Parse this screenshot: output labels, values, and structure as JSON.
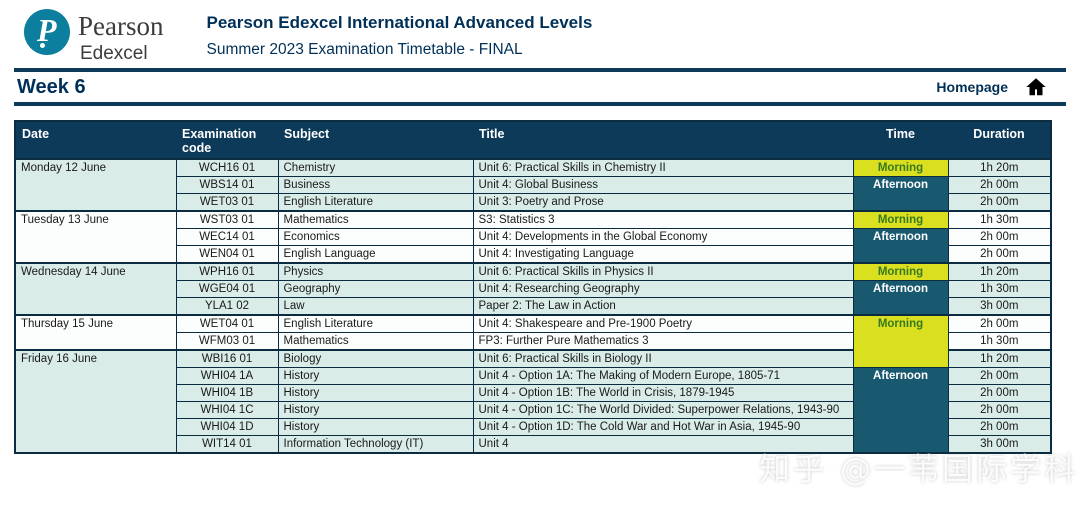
{
  "header": {
    "logo": {
      "monogram": "P",
      "brand": "Pearson",
      "sub": "Edexcel"
    },
    "title": "Pearson Edexcel International Advanced Levels",
    "subtitle": "Summer 2023 Examination Timetable - FINAL"
  },
  "weekbar": {
    "week": "Week 6",
    "homepage": "Homepage"
  },
  "colors": {
    "navy": "#0e3a5a",
    "text_navy": "#003057",
    "morning_bg": "#dadf1f",
    "morning_text": "#377a1d",
    "afternoon_bg": "#18596f",
    "row_mint": "#d9ece8",
    "row_white": "#fcfefd",
    "logo_teal": "#0d7f9e"
  },
  "table": {
    "columns": [
      {
        "label": "Date",
        "align": "left"
      },
      {
        "label": "Examination\ncode",
        "align": "left"
      },
      {
        "label": "Subject",
        "align": "left"
      },
      {
        "label": "Title",
        "align": "left"
      },
      {
        "label": "Time",
        "align": "center"
      },
      {
        "label": "Duration",
        "align": "center"
      }
    ],
    "rows": [
      {
        "shade": "mint",
        "group_start": true,
        "date": {
          "label": "Monday 12 June",
          "rowspan": 3
        },
        "code": "WCH16 01",
        "subject": "Chemistry",
        "title": "Unit 6: Practical Skills in Chemistry II",
        "time": {
          "label": "Morning",
          "kind": "morning",
          "rowspan": 1
        },
        "duration": "1h 20m"
      },
      {
        "shade": "mint",
        "code": "WBS14 01",
        "subject": "Business",
        "title": "Unit 4: Global Business",
        "time": {
          "label": "Afternoon",
          "kind": "afternoon",
          "rowspan": 2
        },
        "duration": "2h 00m"
      },
      {
        "shade": "mint",
        "code": "WET03 01",
        "subject": "English Literature",
        "title": "Unit 3: Poetry and Prose",
        "duration": "2h 00m"
      },
      {
        "shade": "white",
        "group_start": true,
        "date": {
          "label": "Tuesday 13 June",
          "rowspan": 3
        },
        "code": "WST03 01",
        "subject": "Mathematics",
        "title": "S3: Statistics 3",
        "time": {
          "label": "Morning",
          "kind": "morning",
          "rowspan": 1
        },
        "duration": "1h 30m"
      },
      {
        "shade": "white",
        "code": "WEC14 01",
        "subject": "Economics",
        "title": "Unit 4: Developments in the Global Economy",
        "time": {
          "label": "Afternoon",
          "kind": "afternoon",
          "rowspan": 2
        },
        "duration": "2h 00m"
      },
      {
        "shade": "white",
        "code": "WEN04 01",
        "subject": "English Language",
        "title": "Unit 4: Investigating Language",
        "duration": "2h 00m"
      },
      {
        "shade": "mint",
        "group_start": true,
        "date": {
          "label": "Wednesday 14 June",
          "rowspan": 3
        },
        "code": "WPH16 01",
        "subject": "Physics",
        "title": "Unit 6: Practical Skills in Physics II",
        "time": {
          "label": "Morning",
          "kind": "morning",
          "rowspan": 1
        },
        "duration": "1h 20m"
      },
      {
        "shade": "mint",
        "code": "WGE04 01",
        "subject": "Geography",
        "title": "Unit 4: Researching Geography",
        "time": {
          "label": "Afternoon",
          "kind": "afternoon",
          "rowspan": 2
        },
        "duration": "1h 30m"
      },
      {
        "shade": "mint",
        "code": "YLA1 02",
        "subject": "Law",
        "title": "Paper 2: The Law in Action",
        "duration": "3h 00m"
      },
      {
        "shade": "white",
        "group_start": true,
        "date": {
          "label": "Thursday 15 June",
          "rowspan": 2
        },
        "code": "WET04 01",
        "subject": "English Literature",
        "title": "Unit 4: Shakespeare and Pre-1900 Poetry",
        "time": {
          "label": "Morning",
          "kind": "morning",
          "rowspan": 3
        },
        "duration": "2h 00m"
      },
      {
        "shade": "white",
        "code": "WFM03 01",
        "subject": "Mathematics",
        "title": "FP3: Further Pure Mathematics 3",
        "duration": "1h 30m"
      },
      {
        "shade": "mint",
        "group_start": true,
        "date": {
          "label": "Friday 16 June",
          "rowspan": 6
        },
        "code": "WBI16 01",
        "subject": "Biology",
        "title": "Unit 6: Practical Skills in Biology II",
        "duration": "1h 20m"
      },
      {
        "shade": "mint",
        "code": "WHI04 1A",
        "subject": "History",
        "title": "Unit 4 - Option 1A: The Making of Modern Europe, 1805-71",
        "time": {
          "label": "Afternoon",
          "kind": "afternoon",
          "rowspan": 5
        },
        "duration": "2h 00m"
      },
      {
        "shade": "mint",
        "code": "WHI04 1B",
        "subject": "History",
        "title": "Unit 4 - Option 1B: The World in Crisis, 1879-1945",
        "duration": "2h 00m"
      },
      {
        "shade": "mint",
        "code": "WHI04 1C",
        "subject": "History",
        "title": "Unit 4 - Option 1C: The World Divided: Superpower Relations, 1943-90",
        "duration": "2h 00m"
      },
      {
        "shade": "mint",
        "code": "WHI04 1D",
        "subject": "History",
        "title": "Unit 4 - Option 1D: The Cold War and Hot War in Asia, 1945-90",
        "duration": "2h 00m"
      },
      {
        "shade": "mint",
        "code": "WIT14 01",
        "subject": "Information Technology (IT)",
        "title": "Unit 4",
        "duration": "3h 00m"
      }
    ]
  },
  "watermark": "知乎 @一苇国际学科"
}
